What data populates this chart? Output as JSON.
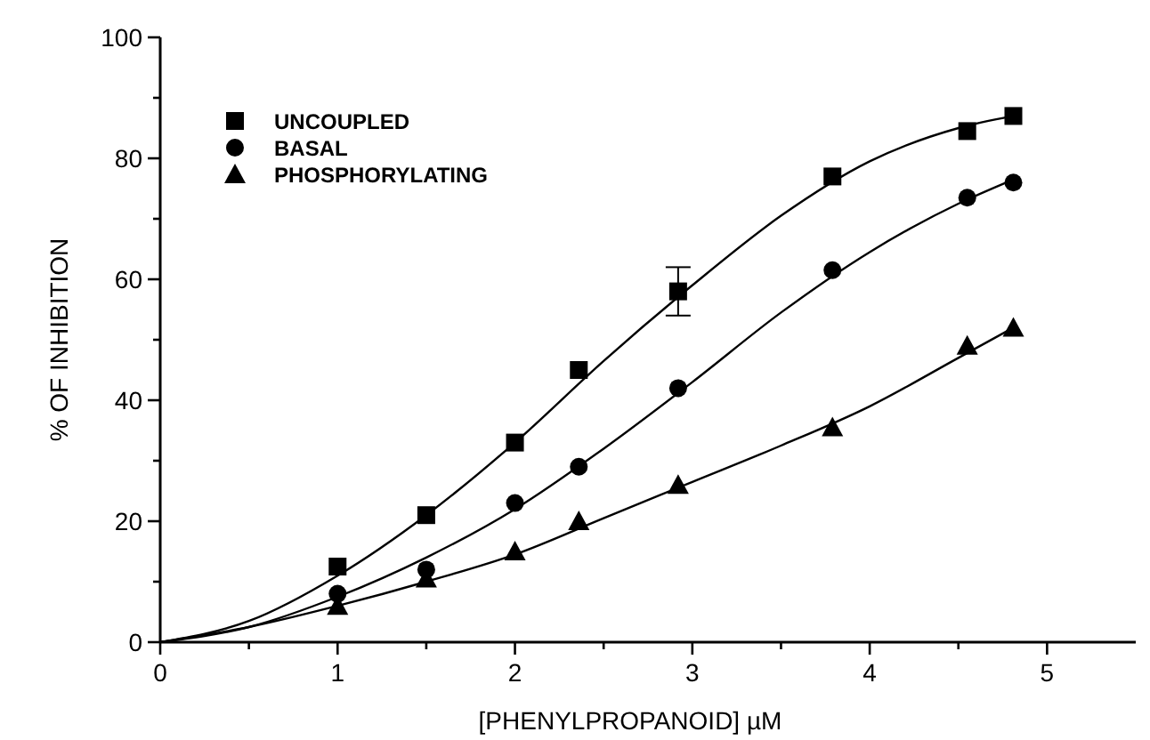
{
  "chart_data": {
    "type": "scatter",
    "xlabel": "[PHENYLPROPANOID] µM",
    "ylabel": "% OF INHIBITION",
    "xlim": [
      0,
      5.5
    ],
    "ylim": [
      0,
      100
    ],
    "xticks": [
      0,
      {
        "value": 0.5,
        "label": null
      },
      1,
      {
        "value": 1.5,
        "label": null
      },
      2,
      {
        "value": 2.5,
        "label": null
      },
      3,
      {
        "value": 3.5,
        "label": null
      },
      4,
      {
        "value": 4.5,
        "label": null
      },
      5
    ],
    "yticks": [
      0,
      {
        "value": 10,
        "label": null
      },
      20,
      {
        "value": 30,
        "label": null
      },
      40,
      {
        "value": 50,
        "label": null
      },
      60,
      {
        "value": 70,
        "label": null
      },
      80,
      {
        "value": 90,
        "label": null
      },
      100
    ],
    "grid": false,
    "legend": "top left",
    "series": [
      {
        "name": "UNCOUPLED",
        "color": "#000000",
        "marker": "square",
        "x": [
          1.0,
          1.5,
          2.0,
          2.36,
          2.92,
          3.79,
          4.55,
          4.81
        ],
        "values": [
          12.5,
          21,
          33,
          45,
          58,
          77,
          84.5,
          87
        ],
        "errors": [
          null,
          null,
          null,
          null,
          [
            54,
            62
          ],
          null,
          null,
          null
        ]
      },
      {
        "name": "BASAL",
        "color": "#000000",
        "marker": "circle",
        "x": [
          1.0,
          1.5,
          2.0,
          2.36,
          2.92,
          3.79,
          4.55,
          4.81
        ],
        "values": [
          8,
          12,
          23,
          29,
          42,
          61.5,
          73.5,
          76
        ]
      },
      {
        "name": "PHOSPHORYLATING",
        "color": "#000000",
        "marker": "triangle",
        "x": [
          1.0,
          1.5,
          2.0,
          2.36,
          2.92,
          3.79,
          4.55,
          4.81
        ],
        "values": [
          6,
          10.5,
          15,
          20,
          26,
          35.5,
          49,
          52
        ]
      },
      {
        "type": "line",
        "color": "#000000",
        "marker": "none",
        "line_style": "solid",
        "x": [
          0,
          0.5,
          1,
          1.5,
          2,
          2.5,
          3,
          3.5,
          4,
          4.5,
          4.81
        ],
        "values": [
          0,
          3.5,
          11,
          21,
          33,
          46.5,
          59,
          70.5,
          79.5,
          85,
          87
        ]
      },
      {
        "type": "line",
        "color": "#000000",
        "marker": "none",
        "line_style": "solid",
        "x": [
          0,
          0.5,
          1,
          1.5,
          2,
          2.5,
          3,
          3.5,
          4,
          4.5,
          4.81
        ],
        "values": [
          0,
          2.5,
          7.5,
          14,
          22,
          32,
          43,
          54.5,
          64.5,
          72.5,
          76.5
        ]
      },
      {
        "type": "line",
        "color": "#000000",
        "marker": "none",
        "line_style": "solid",
        "x": [
          0,
          0.5,
          1,
          1.5,
          2,
          2.5,
          3,
          3.5,
          4,
          4.5,
          4.81
        ],
        "values": [
          0,
          2.5,
          6,
          10,
          14.5,
          20.5,
          26.5,
          32.5,
          39,
          47,
          52
        ]
      }
    ]
  }
}
